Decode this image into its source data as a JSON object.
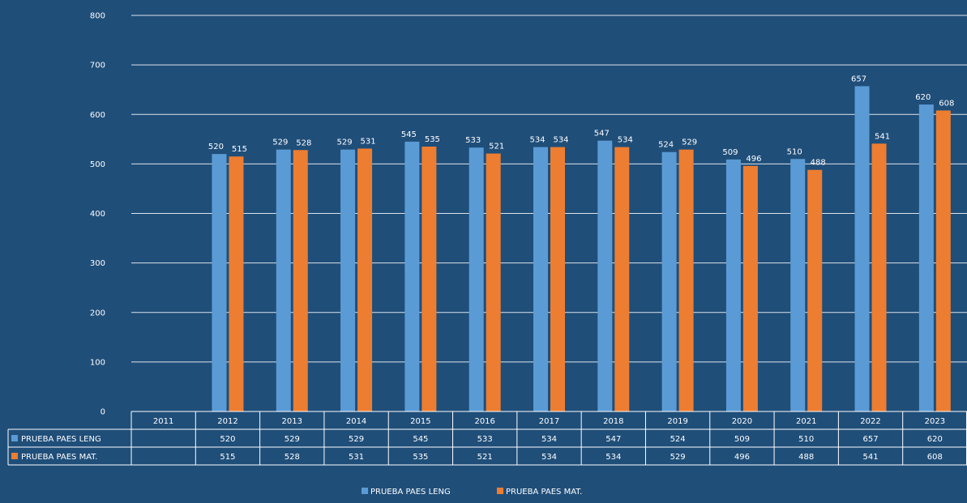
{
  "chart_data": {
    "type": "bar",
    "categories": [
      "2011",
      "2012",
      "2013",
      "2014",
      "2015",
      "2016",
      "2017",
      "2018",
      "2019",
      "2020",
      "2021",
      "2022",
      "2023"
    ],
    "series": [
      {
        "name": "PRUEBA PAES LENG",
        "color": "#5b9bd5",
        "values": [
          null,
          520,
          529,
          529,
          545,
          533,
          534,
          547,
          524,
          509,
          510,
          657,
          620
        ]
      },
      {
        "name": "PRUEBA PAES MAT.",
        "color": "#ed7d31",
        "values": [
          null,
          515,
          528,
          531,
          535,
          521,
          534,
          534,
          529,
          496,
          488,
          541,
          608
        ]
      }
    ],
    "yticks": [
      0,
      100,
      200,
      300,
      400,
      500,
      600,
      700,
      800
    ],
    "ylim": [
      0,
      800
    ],
    "grid": true,
    "data_table": true,
    "legend_position": "bottom"
  }
}
